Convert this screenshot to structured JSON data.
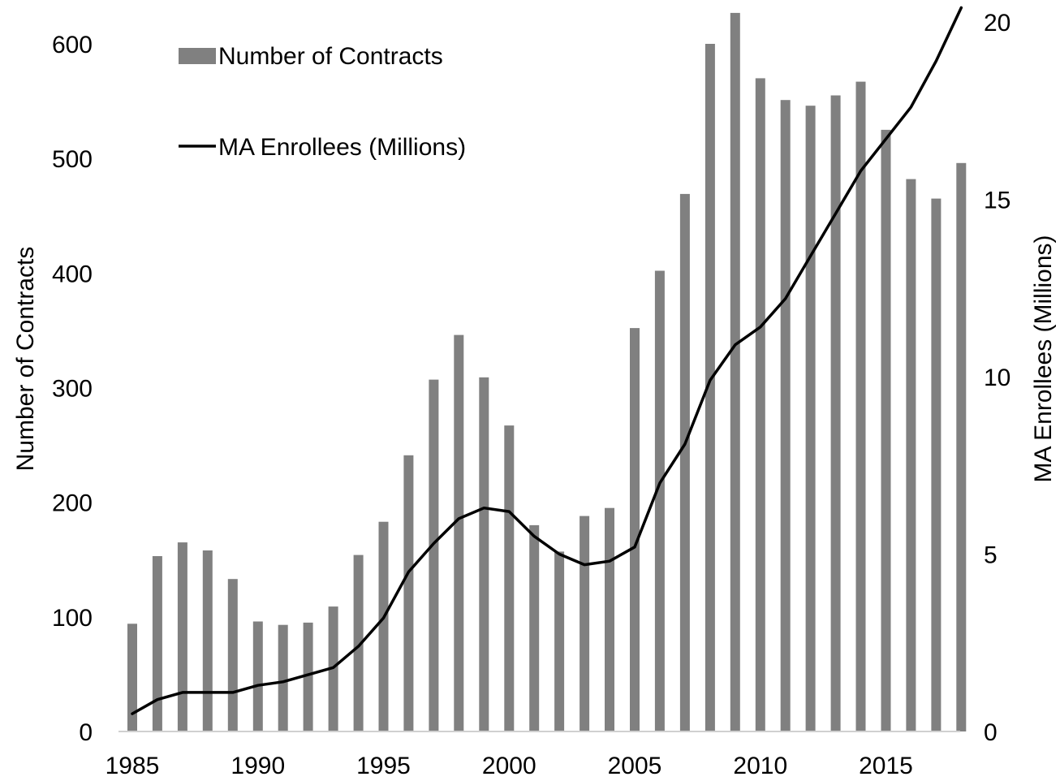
{
  "chart_data": {
    "type": "bar",
    "title": "",
    "xlabel": "",
    "ylabel": "Number of Contracts",
    "y2label": "MA Enrollees (Millions)",
    "ylim": [
      0,
      600
    ],
    "y2lim": [
      0,
      20
    ],
    "yticks": [
      "0",
      "100",
      "200",
      "300",
      "400",
      "500",
      "600"
    ],
    "y2ticks": [
      "0",
      "5",
      "10",
      "15",
      "20"
    ],
    "xticks": [
      "1985",
      "1990",
      "1995",
      "2000",
      "2005",
      "2010",
      "2015"
    ],
    "grid": false,
    "legend_position": "top-left",
    "categories": [
      1985,
      1986,
      1987,
      1988,
      1989,
      1990,
      1991,
      1992,
      1993,
      1994,
      1995,
      1996,
      1997,
      1998,
      1999,
      2000,
      2001,
      2002,
      2003,
      2004,
      2005,
      2006,
      2007,
      2008,
      2009,
      2010,
      2011,
      2012,
      2013,
      2014,
      2015,
      2016,
      2017,
      2018
    ],
    "series": [
      {
        "name": "Number of Contracts",
        "type": "bar",
        "axis": "left",
        "color": "#808080",
        "values": [
          94,
          153,
          165,
          158,
          133,
          96,
          93,
          95,
          109,
          154,
          183,
          241,
          307,
          346,
          309,
          267,
          180,
          157,
          188,
          195,
          352,
          402,
          469,
          600,
          627,
          570,
          551,
          546,
          555,
          567,
          525,
          482,
          465,
          496
        ]
      },
      {
        "name": "MA Enrollees (Millions)",
        "type": "line",
        "axis": "right",
        "color": "#000000",
        "values": [
          0.5,
          0.9,
          1.1,
          1.1,
          1.1,
          1.3,
          1.4,
          1.6,
          1.8,
          2.4,
          3.2,
          4.5,
          5.3,
          6.0,
          6.3,
          6.2,
          5.5,
          5.0,
          4.7,
          4.8,
          5.2,
          7.0,
          8.1,
          9.9,
          10.9,
          11.4,
          12.2,
          13.4,
          14.6,
          15.8,
          16.7,
          17.6,
          18.9,
          20.4
        ]
      }
    ]
  }
}
